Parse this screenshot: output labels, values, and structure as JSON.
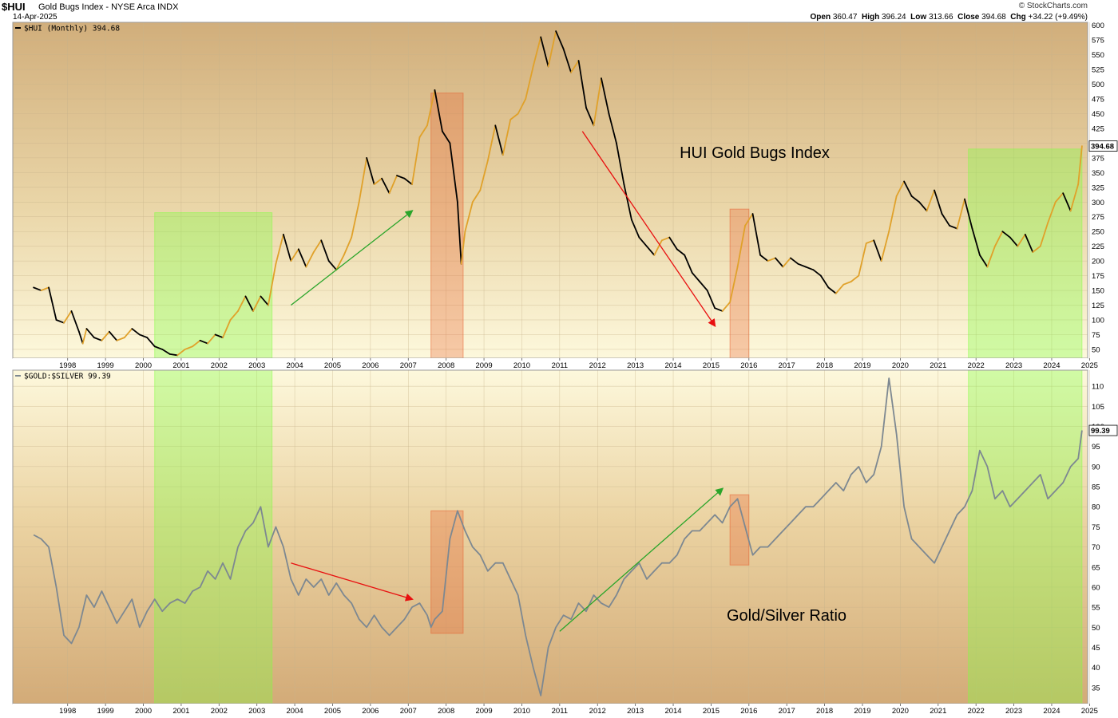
{
  "header": {
    "symbol": "$HUI",
    "description": "Gold Bugs Index - NYSE Arca  INDX",
    "date": "14-Apr-2025",
    "brand": "© StockCharts.com",
    "open_label": "Open",
    "open": "360.47",
    "high_label": "High",
    "high": "396.24",
    "low_label": "Low",
    "low": "313.66",
    "close_label": "Close",
    "close": "394.68",
    "chg_label": "Chg",
    "chg": "+34.22 (+9.49%)"
  },
  "colors": {
    "hui_up": "#e0a12a",
    "hui_down": "#000000",
    "ratio_line": "#7d8891",
    "green_zone": "#7fff40",
    "red_zone": "#e85c2c",
    "green_arrow": "#2aa52a",
    "red_arrow": "#e81010"
  },
  "chart_data": [
    {
      "type": "line",
      "legend": "$HUI (Monthly) 394.68",
      "last_value_label": "394.68",
      "annotation": "HUI Gold Bugs Index",
      "x_ticks": [
        "1998",
        "1999",
        "2000",
        "2001",
        "2002",
        "2003",
        "2004",
        "2005",
        "2006",
        "2007",
        "2008",
        "2009",
        "2010",
        "2011",
        "2012",
        "2013",
        "2014",
        "2015",
        "2016",
        "2017",
        "2018",
        "2019",
        "2020",
        "2021",
        "2022",
        "2023",
        "2024",
        "2025"
      ],
      "y_ticks": [
        50,
        75,
        100,
        125,
        150,
        175,
        200,
        225,
        250,
        275,
        300,
        325,
        350,
        375,
        400,
        425,
        450,
        475,
        500,
        525,
        550,
        575,
        600
      ],
      "ylim": [
        35,
        605
      ],
      "grid": true,
      "points": [
        [
          1997.6,
          155
        ],
        [
          1997.8,
          150
        ],
        [
          1998.0,
          155
        ],
        [
          1998.2,
          100
        ],
        [
          1998.4,
          95
        ],
        [
          1998.6,
          115
        ],
        [
          1998.8,
          80
        ],
        [
          1998.9,
          60
        ],
        [
          1999.0,
          85
        ],
        [
          1999.2,
          70
        ],
        [
          1999.4,
          65
        ],
        [
          1999.6,
          80
        ],
        [
          1999.8,
          65
        ],
        [
          2000.0,
          70
        ],
        [
          2000.2,
          85
        ],
        [
          2000.4,
          75
        ],
        [
          2000.6,
          70
        ],
        [
          2000.8,
          55
        ],
        [
          2001.0,
          50
        ],
        [
          2001.2,
          42
        ],
        [
          2001.4,
          40
        ],
        [
          2001.6,
          50
        ],
        [
          2001.8,
          55
        ],
        [
          2002.0,
          65
        ],
        [
          2002.2,
          60
        ],
        [
          2002.4,
          75
        ],
        [
          2002.6,
          70
        ],
        [
          2002.8,
          100
        ],
        [
          2003.0,
          115
        ],
        [
          2003.2,
          140
        ],
        [
          2003.4,
          115
        ],
        [
          2003.6,
          140
        ],
        [
          2003.8,
          125
        ],
        [
          2004.0,
          195
        ],
        [
          2004.2,
          245
        ],
        [
          2004.4,
          200
        ],
        [
          2004.6,
          220
        ],
        [
          2004.8,
          190
        ],
        [
          2005.0,
          215
        ],
        [
          2005.2,
          235
        ],
        [
          2005.4,
          200
        ],
        [
          2005.6,
          185
        ],
        [
          2005.8,
          210
        ],
        [
          2006.0,
          240
        ],
        [
          2006.2,
          300
        ],
        [
          2006.4,
          375
        ],
        [
          2006.6,
          330
        ],
        [
          2006.8,
          340
        ],
        [
          2007.0,
          315
        ],
        [
          2007.2,
          345
        ],
        [
          2007.4,
          340
        ],
        [
          2007.6,
          330
        ],
        [
          2007.8,
          410
        ],
        [
          2008.0,
          430
        ],
        [
          2008.2,
          490
        ],
        [
          2008.4,
          420
        ],
        [
          2008.6,
          400
        ],
        [
          2008.8,
          300
        ],
        [
          2008.9,
          195
        ],
        [
          2009.0,
          250
        ],
        [
          2009.2,
          300
        ],
        [
          2009.4,
          320
        ],
        [
          2009.6,
          370
        ],
        [
          2009.8,
          430
        ],
        [
          2010.0,
          380
        ],
        [
          2010.2,
          440
        ],
        [
          2010.4,
          450
        ],
        [
          2010.6,
          475
        ],
        [
          2010.8,
          530
        ],
        [
          2011.0,
          580
        ],
        [
          2011.2,
          530
        ],
        [
          2011.4,
          590
        ],
        [
          2011.6,
          560
        ],
        [
          2011.8,
          520
        ],
        [
          2012.0,
          540
        ],
        [
          2012.2,
          460
        ],
        [
          2012.4,
          430
        ],
        [
          2012.6,
          510
        ],
        [
          2012.8,
          450
        ],
        [
          2013.0,
          400
        ],
        [
          2013.2,
          330
        ],
        [
          2013.4,
          270
        ],
        [
          2013.6,
          240
        ],
        [
          2013.8,
          225
        ],
        [
          2014.0,
          210
        ],
        [
          2014.2,
          235
        ],
        [
          2014.4,
          240
        ],
        [
          2014.6,
          220
        ],
        [
          2014.8,
          210
        ],
        [
          2015.0,
          180
        ],
        [
          2015.2,
          165
        ],
        [
          2015.4,
          150
        ],
        [
          2015.6,
          120
        ],
        [
          2015.8,
          115
        ],
        [
          2016.0,
          130
        ],
        [
          2016.2,
          190
        ],
        [
          2016.4,
          260
        ],
        [
          2016.6,
          280
        ],
        [
          2016.8,
          210
        ],
        [
          2017.0,
          200
        ],
        [
          2017.2,
          205
        ],
        [
          2017.4,
          190
        ],
        [
          2017.6,
          205
        ],
        [
          2017.8,
          195
        ],
        [
          2018.0,
          190
        ],
        [
          2018.2,
          185
        ],
        [
          2018.4,
          175
        ],
        [
          2018.6,
          155
        ],
        [
          2018.8,
          145
        ],
        [
          2019.0,
          160
        ],
        [
          2019.2,
          165
        ],
        [
          2019.4,
          175
        ],
        [
          2019.6,
          230
        ],
        [
          2019.8,
          235
        ],
        [
          2020.0,
          200
        ],
        [
          2020.2,
          250
        ],
        [
          2020.4,
          310
        ],
        [
          2020.6,
          335
        ],
        [
          2020.8,
          310
        ],
        [
          2021.0,
          300
        ],
        [
          2021.2,
          285
        ],
        [
          2021.4,
          320
        ],
        [
          2021.6,
          280
        ],
        [
          2021.8,
          260
        ],
        [
          2022.0,
          255
        ],
        [
          2022.2,
          305
        ],
        [
          2022.4,
          255
        ],
        [
          2022.6,
          210
        ],
        [
          2022.8,
          190
        ],
        [
          2023.0,
          225
        ],
        [
          2023.2,
          250
        ],
        [
          2023.4,
          240
        ],
        [
          2023.6,
          225
        ],
        [
          2023.8,
          245
        ],
        [
          2024.0,
          215
        ],
        [
          2024.2,
          225
        ],
        [
          2024.4,
          265
        ],
        [
          2024.6,
          300
        ],
        [
          2024.8,
          315
        ],
        [
          2025.0,
          285
        ],
        [
          2025.2,
          330
        ],
        [
          2025.3,
          395
        ]
      ],
      "shaded_zones": [
        {
          "color": "green",
          "x0": 2000.8,
          "x1": 2003.9,
          "y_top": 282
        },
        {
          "color": "red",
          "x0": 2008.1,
          "x1": 2008.95,
          "y_top": 485
        },
        {
          "color": "red",
          "x0": 2016.0,
          "x1": 2016.5,
          "y_top": 288
        },
        {
          "color": "green",
          "x0": 2022.3,
          "x1": 2025.3,
          "y_top": 390
        }
      ],
      "arrows": [
        {
          "color": "green",
          "from": [
            2004.4,
            125
          ],
          "to": [
            2007.6,
            285
          ]
        },
        {
          "color": "red",
          "from": [
            2012.1,
            420
          ],
          "to": [
            2015.6,
            90
          ]
        }
      ]
    },
    {
      "type": "line",
      "legend": "$GOLD:$SILVER 99.39",
      "last_value_label": "99.39",
      "annotation": "Gold/Silver Ratio",
      "x_ticks": [
        "1998",
        "1999",
        "2000",
        "2001",
        "2002",
        "2003",
        "2004",
        "2005",
        "2006",
        "2007",
        "2008",
        "2009",
        "2010",
        "2011",
        "2012",
        "2013",
        "2014",
        "2015",
        "2016",
        "2017",
        "2018",
        "2019",
        "2020",
        "2021",
        "2022",
        "2023",
        "2024",
        "2025"
      ],
      "y_ticks": [
        35,
        40,
        45,
        50,
        55,
        60,
        65,
        70,
        75,
        80,
        85,
        90,
        95,
        100,
        105,
        110
      ],
      "ylim": [
        31,
        114
      ],
      "grid": true,
      "points": [
        [
          1997.6,
          73
        ],
        [
          1997.8,
          72
        ],
        [
          1998.0,
          70
        ],
        [
          1998.2,
          60
        ],
        [
          1998.4,
          48
        ],
        [
          1998.6,
          46
        ],
        [
          1998.8,
          50
        ],
        [
          1999.0,
          58
        ],
        [
          1999.2,
          55
        ],
        [
          1999.4,
          59
        ],
        [
          1999.6,
          55
        ],
        [
          1999.8,
          51
        ],
        [
          2000.0,
          54
        ],
        [
          2000.2,
          57
        ],
        [
          2000.4,
          50
        ],
        [
          2000.6,
          54
        ],
        [
          2000.8,
          57
        ],
        [
          2001.0,
          54
        ],
        [
          2001.2,
          56
        ],
        [
          2001.4,
          57
        ],
        [
          2001.6,
          56
        ],
        [
          2001.8,
          59
        ],
        [
          2002.0,
          60
        ],
        [
          2002.2,
          64
        ],
        [
          2002.4,
          62
        ],
        [
          2002.6,
          66
        ],
        [
          2002.8,
          62
        ],
        [
          2003.0,
          70
        ],
        [
          2003.2,
          74
        ],
        [
          2003.4,
          76
        ],
        [
          2003.6,
          80
        ],
        [
          2003.8,
          70
        ],
        [
          2004.0,
          75
        ],
        [
          2004.2,
          70
        ],
        [
          2004.4,
          62
        ],
        [
          2004.6,
          58
        ],
        [
          2004.8,
          62
        ],
        [
          2005.0,
          60
        ],
        [
          2005.2,
          62
        ],
        [
          2005.4,
          58
        ],
        [
          2005.6,
          61
        ],
        [
          2005.8,
          58
        ],
        [
          2006.0,
          56
        ],
        [
          2006.2,
          52
        ],
        [
          2006.4,
          50
        ],
        [
          2006.6,
          53
        ],
        [
          2006.8,
          50
        ],
        [
          2007.0,
          48
        ],
        [
          2007.2,
          50
        ],
        [
          2007.4,
          52
        ],
        [
          2007.6,
          55
        ],
        [
          2007.8,
          56
        ],
        [
          2008.0,
          53
        ],
        [
          2008.1,
          50
        ],
        [
          2008.2,
          52
        ],
        [
          2008.4,
          54
        ],
        [
          2008.6,
          72
        ],
        [
          2008.8,
          79
        ],
        [
          2009.0,
          74
        ],
        [
          2009.2,
          70
        ],
        [
          2009.4,
          68
        ],
        [
          2009.6,
          64
        ],
        [
          2009.8,
          66
        ],
        [
          2010.0,
          66
        ],
        [
          2010.2,
          62
        ],
        [
          2010.4,
          58
        ],
        [
          2010.6,
          48
        ],
        [
          2010.8,
          40
        ],
        [
          2011.0,
          33
        ],
        [
          2011.2,
          45
        ],
        [
          2011.4,
          50
        ],
        [
          2011.6,
          53
        ],
        [
          2011.8,
          52
        ],
        [
          2012.0,
          56
        ],
        [
          2012.2,
          54
        ],
        [
          2012.4,
          58
        ],
        [
          2012.6,
          56
        ],
        [
          2012.8,
          55
        ],
        [
          2013.0,
          58
        ],
        [
          2013.2,
          62
        ],
        [
          2013.4,
          64
        ],
        [
          2013.6,
          66
        ],
        [
          2013.8,
          62
        ],
        [
          2014.0,
          64
        ],
        [
          2014.2,
          66
        ],
        [
          2014.4,
          66
        ],
        [
          2014.6,
          68
        ],
        [
          2014.8,
          72
        ],
        [
          2015.0,
          74
        ],
        [
          2015.2,
          74
        ],
        [
          2015.4,
          76
        ],
        [
          2015.6,
          78
        ],
        [
          2015.8,
          76
        ],
        [
          2016.0,
          80
        ],
        [
          2016.2,
          82
        ],
        [
          2016.4,
          75
        ],
        [
          2016.6,
          68
        ],
        [
          2016.8,
          70
        ],
        [
          2017.0,
          70
        ],
        [
          2017.2,
          72
        ],
        [
          2017.4,
          74
        ],
        [
          2017.6,
          76
        ],
        [
          2017.8,
          78
        ],
        [
          2018.0,
          80
        ],
        [
          2018.2,
          80
        ],
        [
          2018.4,
          82
        ],
        [
          2018.6,
          84
        ],
        [
          2018.8,
          86
        ],
        [
          2019.0,
          84
        ],
        [
          2019.2,
          88
        ],
        [
          2019.4,
          90
        ],
        [
          2019.6,
          86
        ],
        [
          2019.8,
          88
        ],
        [
          2020.0,
          95
        ],
        [
          2020.2,
          112
        ],
        [
          2020.4,
          98
        ],
        [
          2020.6,
          80
        ],
        [
          2020.8,
          72
        ],
        [
          2021.0,
          70
        ],
        [
          2021.2,
          68
        ],
        [
          2021.4,
          66
        ],
        [
          2021.6,
          70
        ],
        [
          2021.8,
          74
        ],
        [
          2022.0,
          78
        ],
        [
          2022.2,
          80
        ],
        [
          2022.4,
          84
        ],
        [
          2022.6,
          94
        ],
        [
          2022.8,
          90
        ],
        [
          2023.0,
          82
        ],
        [
          2023.2,
          84
        ],
        [
          2023.4,
          80
        ],
        [
          2023.6,
          82
        ],
        [
          2023.8,
          84
        ],
        [
          2024.0,
          86
        ],
        [
          2024.2,
          88
        ],
        [
          2024.4,
          82
        ],
        [
          2024.6,
          84
        ],
        [
          2024.8,
          86
        ],
        [
          2025.0,
          90
        ],
        [
          2025.2,
          92
        ],
        [
          2025.3,
          99
        ]
      ],
      "shaded_zones": [
        {
          "color": "green",
          "x0": 2000.8,
          "x1": 2003.9,
          "y_top": 114
        },
        {
          "color": "red",
          "x0": 2008.1,
          "x1": 2008.95,
          "y_top": 79,
          "y_bottom": 48.5
        },
        {
          "color": "red",
          "x0": 2016.0,
          "x1": 2016.5,
          "y_top": 83,
          "y_bottom": 65.5
        },
        {
          "color": "green",
          "x0": 2022.3,
          "x1": 2025.3,
          "y_top": 114
        }
      ],
      "arrows": [
        {
          "color": "red",
          "from": [
            2004.4,
            66
          ],
          "to": [
            2007.6,
            57
          ]
        },
        {
          "color": "green",
          "from": [
            2011.5,
            49
          ],
          "to": [
            2015.8,
            84.5
          ]
        }
      ]
    }
  ]
}
